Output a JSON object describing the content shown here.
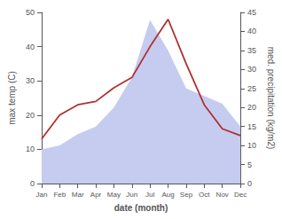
{
  "chart_data": {
    "type": "line",
    "xlabel": "date (month)",
    "ylabel": "max temp (C)",
    "y2label": "med. precipitation (kg/m2)",
    "categories": [
      "Jan",
      "Feb",
      "Mar",
      "Apr",
      "May",
      "Jun",
      "Jul",
      "Aug",
      "Sep",
      "Oct",
      "Nov",
      "Dec"
    ],
    "series": [
      {
        "type": "area",
        "axis": "y2",
        "color": "#c5ccf0",
        "values": [
          9,
          10,
          13,
          15,
          20,
          28,
          43,
          35,
          25,
          23,
          21,
          15
        ]
      },
      {
        "type": "line",
        "color": "#b03030",
        "values": [
          13,
          20,
          23,
          24,
          28,
          31,
          40,
          48,
          35,
          23,
          16,
          14
        ]
      }
    ],
    "ylim": [
      0,
      50
    ],
    "yticks": [
      0,
      10,
      20,
      30,
      40,
      50
    ],
    "y2lim": [
      0,
      45
    ],
    "y2ticks": [
      0,
      5,
      10,
      15,
      20,
      25,
      30,
      35,
      40,
      45
    ],
    "grid": false
  }
}
